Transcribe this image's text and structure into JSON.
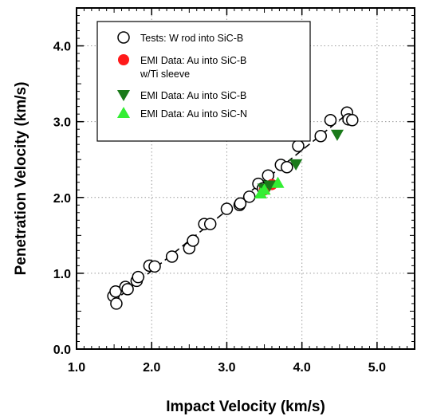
{
  "chart_data": {
    "type": "scatter",
    "title": "",
    "xlabel": "Impact Velocity (km/s)",
    "ylabel": "Penetration Velocity (km/s)",
    "xlim": [
      1.0,
      5.5
    ],
    "ylim": [
      0.0,
      4.5
    ],
    "x_ticks": [
      "1.0",
      "2.0",
      "3.0",
      "4.0",
      "5.0"
    ],
    "y_ticks": [
      "0.0",
      "1.0",
      "2.0",
      "3.0",
      "4.0"
    ],
    "grid": true,
    "legend": {
      "placement": "top-left",
      "entries": [
        {
          "key": "tests",
          "lines": [
            "Tests:  W rod into SiC-B"
          ]
        },
        {
          "key": "emi_au_ti",
          "lines": [
            "EMI Data:  Au into SiC-B",
            "w/Ti sleeve"
          ]
        },
        {
          "key": "emi_au_b",
          "lines": [
            "EMI Data:  Au into SiC-B"
          ]
        },
        {
          "key": "emi_au_n",
          "lines": [
            "EMI Data:  Au into SiC-N"
          ]
        }
      ]
    },
    "series": [
      {
        "name": "Tests:  W rod into SiC-B",
        "marker": "open-circle",
        "color": "#000000",
        "x": [
          1.49,
          1.52,
          1.53,
          1.65,
          1.68,
          1.8,
          1.82,
          1.97,
          2.04,
          2.27,
          2.5,
          2.55,
          2.7,
          2.78,
          3.0,
          3.17,
          3.18,
          3.3,
          3.42,
          3.48,
          3.55,
          3.72,
          3.8,
          3.95,
          4.25,
          4.38,
          4.6,
          4.62,
          4.67
        ],
        "y": [
          0.7,
          0.76,
          0.6,
          0.82,
          0.79,
          0.9,
          0.95,
          1.1,
          1.09,
          1.22,
          1.33,
          1.43,
          1.65,
          1.65,
          1.85,
          1.9,
          1.92,
          2.01,
          2.18,
          2.12,
          2.29,
          2.43,
          2.4,
          2.68,
          2.81,
          3.02,
          3.12,
          3.03,
          3.02
        ]
      },
      {
        "name": "EMI Data:  Au into SiC-B w/Ti sleeve",
        "marker": "filled-circle",
        "color": "#ff1a1a",
        "x": [
          3.5,
          3.6
        ],
        "y": [
          2.1,
          2.17
        ]
      },
      {
        "name": "EMI Data:  Au into SiC-B",
        "marker": "filled-triangle-down",
        "color": "#1a7a1a",
        "x": [
          3.49,
          3.57,
          3.92,
          4.47
        ],
        "y": [
          2.12,
          2.16,
          2.44,
          2.83
        ]
      },
      {
        "name": "EMI Data:  Au into SiC-N",
        "marker": "filled-triangle-up",
        "color": "#33ee33",
        "x": [
          3.45,
          3.5,
          3.68
        ],
        "y": [
          2.05,
          2.1,
          2.19
        ]
      }
    ],
    "fit_line": {
      "style": "dashed",
      "x": [
        1.48,
        4.6
      ],
      "y": [
        0.62,
        3.1
      ]
    }
  }
}
